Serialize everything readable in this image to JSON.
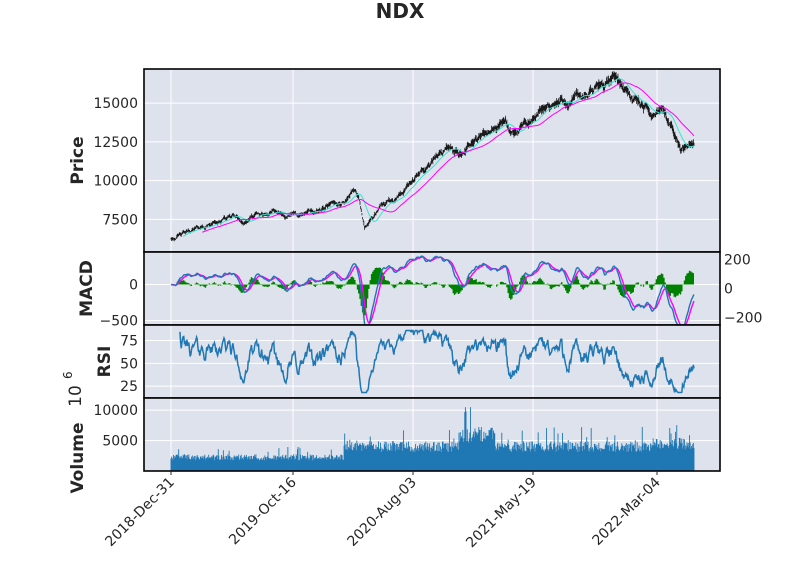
{
  "chart_data": {
    "type": "financial-multipanel",
    "title": "NDX",
    "x_dates": [
      "2018-Dec-31",
      "2019-Oct-16",
      "2020-Aug-03",
      "2021-May-19",
      "2022-Mar-04"
    ],
    "panels": [
      {
        "name": "price",
        "ylabel": "Price",
        "ylim": [
          5400,
          17200
        ],
        "yticks": [
          7500,
          10000,
          12500,
          15000
        ],
        "ytick_labels": [
          "7500",
          "10000",
          "12500",
          "15000"
        ],
        "series": [
          {
            "name": "close",
            "color": "#1a1a1a",
            "kind": "candles-dense"
          },
          {
            "name": "ma-short",
            "color": "#40e0d0",
            "kind": "line"
          },
          {
            "name": "ma-long",
            "color": "#ff00ff",
            "kind": "line"
          }
        ],
        "anchor_points": [
          [
            0,
            6300
          ],
          [
            0.06,
            7000
          ],
          [
            0.1,
            7500
          ],
          [
            0.12,
            7750
          ],
          [
            0.14,
            7300
          ],
          [
            0.16,
            7700
          ],
          [
            0.2,
            7850
          ],
          [
            0.25,
            7800
          ],
          [
            0.28,
            8000
          ],
          [
            0.33,
            8600
          ],
          [
            0.35,
            9500
          ],
          [
            0.36,
            8800
          ],
          [
            0.37,
            7000
          ],
          [
            0.4,
            8200
          ],
          [
            0.45,
            9500
          ],
          [
            0.48,
            10500
          ],
          [
            0.5,
            11300
          ],
          [
            0.53,
            12200
          ],
          [
            0.55,
            11800
          ],
          [
            0.58,
            12500
          ],
          [
            0.6,
            12800
          ],
          [
            0.62,
            13400
          ],
          [
            0.64,
            13800
          ],
          [
            0.65,
            13000
          ],
          [
            0.68,
            13500
          ],
          [
            0.7,
            14000
          ],
          [
            0.72,
            14800
          ],
          [
            0.76,
            15200
          ],
          [
            0.8,
            15500
          ],
          [
            0.83,
            16300
          ],
          [
            0.85,
            16600
          ],
          [
            0.87,
            15900
          ],
          [
            0.9,
            14800
          ],
          [
            0.92,
            14200
          ],
          [
            0.94,
            14700
          ],
          [
            0.96,
            13500
          ],
          [
            0.975,
            12000
          ],
          [
            0.99,
            12500
          ]
        ]
      },
      {
        "name": "macd",
        "ylabel": "MACD",
        "ylim": [
          -560,
          450
        ],
        "yticks_left": [
          -500,
          0
        ],
        "ytick_labels_left": [
          "−500",
          "0"
        ],
        "secondary_ylim": [
          -250,
          250
        ],
        "yticks_right": [
          200,
          0,
          -200
        ],
        "ytick_labels_right": [
          "200",
          "0",
          "−200"
        ],
        "series": [
          {
            "name": "macd-line",
            "color": "#1f77b4"
          },
          {
            "name": "signal-line",
            "color": "#ff00ff"
          },
          {
            "name": "histogram",
            "color": "#008000"
          }
        ]
      },
      {
        "name": "rsi",
        "ylabel": "RSI",
        "ylim": [
          12,
          92
        ],
        "yticks": [
          25,
          50,
          75
        ],
        "ytick_labels": [
          "25",
          "50",
          "75"
        ],
        "series": [
          {
            "name": "rsi-line",
            "color": "#1f77b4"
          }
        ]
      },
      {
        "name": "volume",
        "ylabel": "Volume",
        "exponent_label": "10",
        "exponent_power": "6",
        "ylim": [
          0,
          12000
        ],
        "yticks": [
          5000,
          10000
        ],
        "ytick_labels": [
          "5000",
          "10000"
        ],
        "series": [
          {
            "name": "volume-bars",
            "color": "#1f77b4"
          }
        ]
      }
    ],
    "colors": {
      "panel_bg": "#dde2ec",
      "grid": "#ffffff",
      "frame": "#000000"
    }
  }
}
